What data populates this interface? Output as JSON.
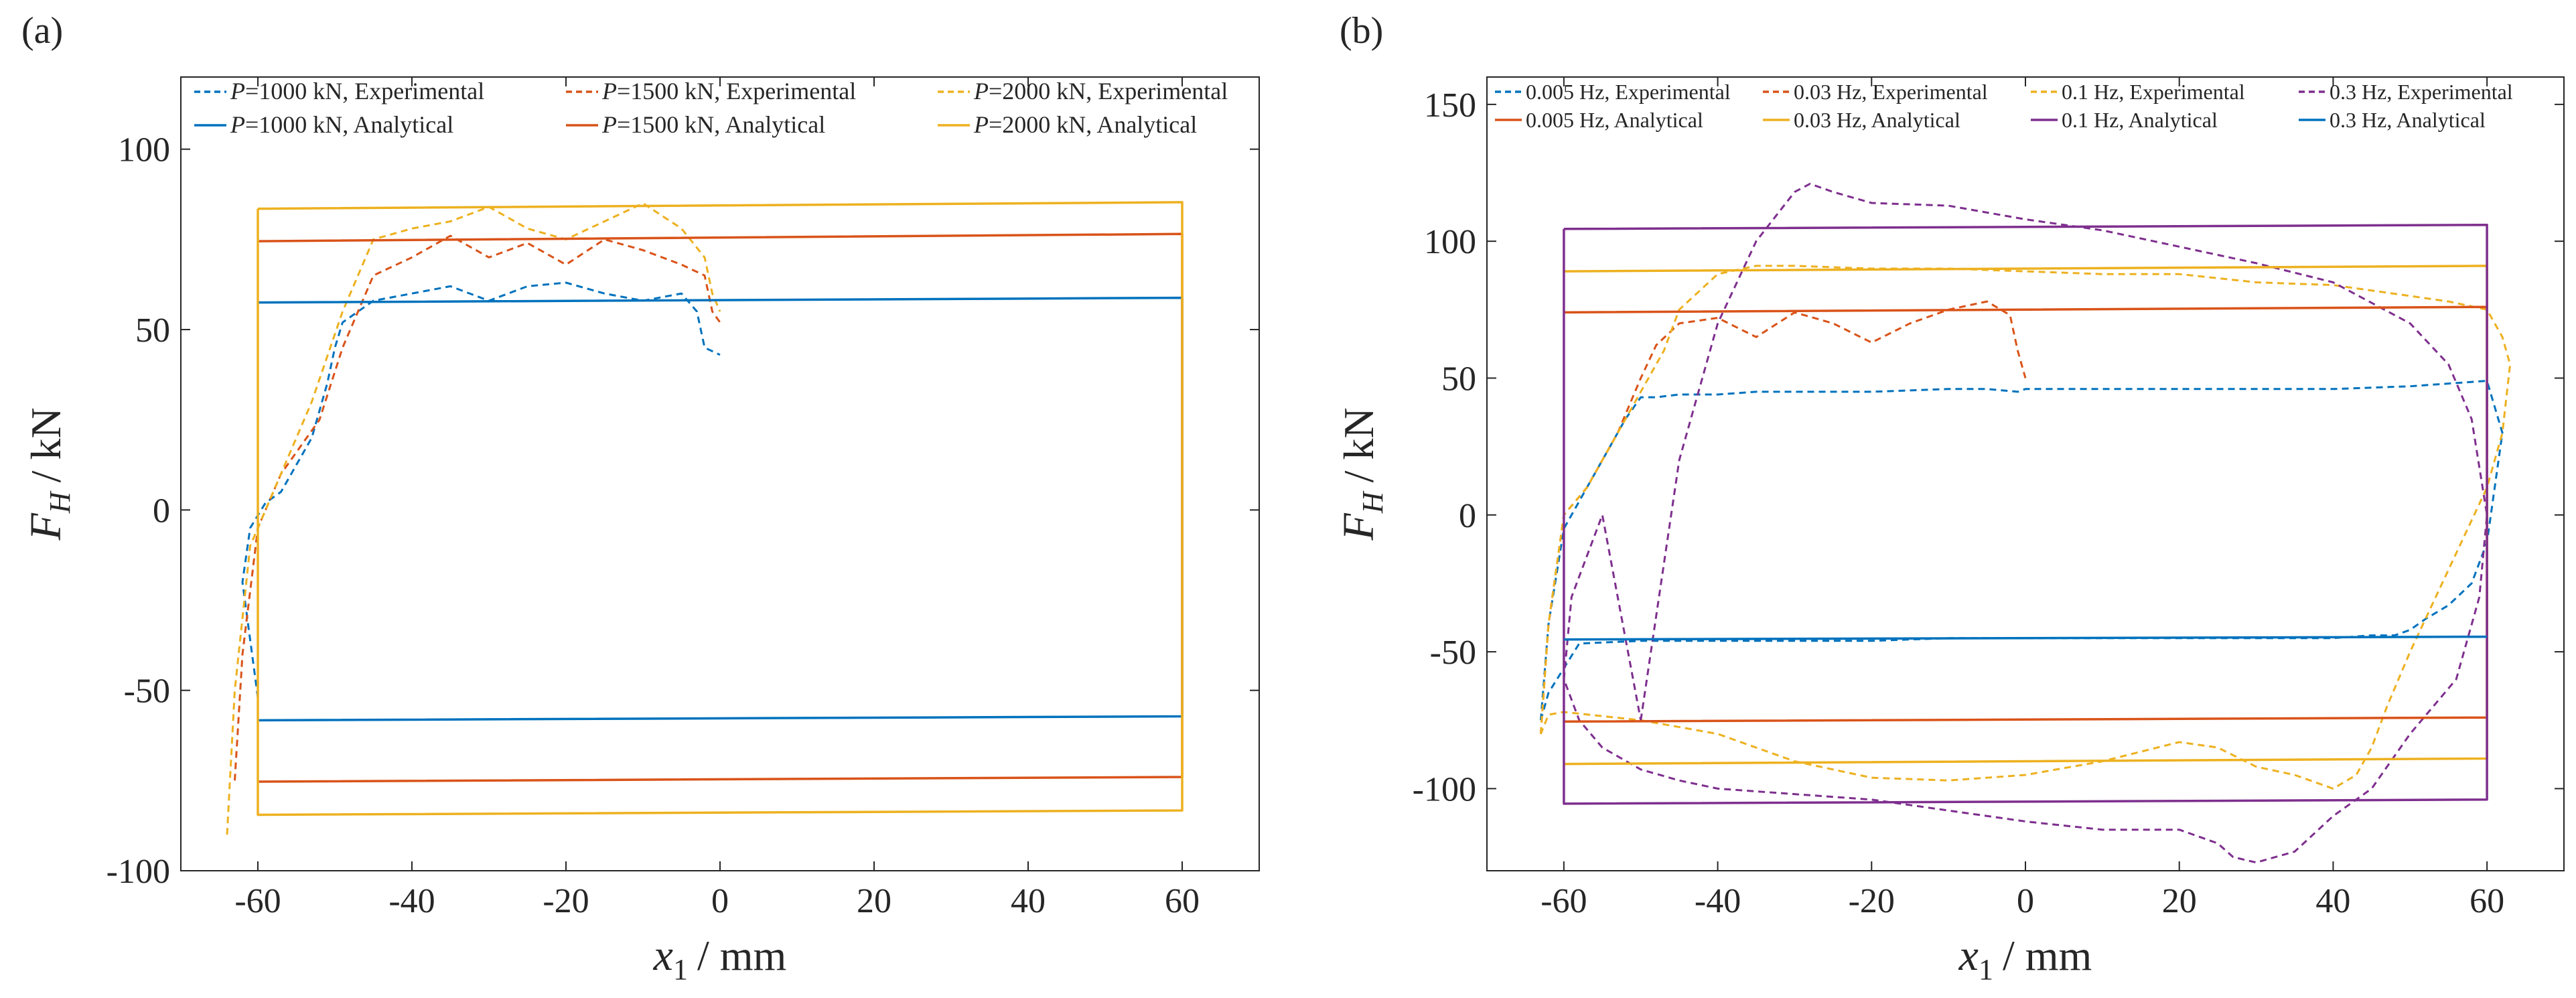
{
  "chart_data": [
    {
      "panel_label": "(a)",
      "type": "line",
      "xlabel_var": "x",
      "xlabel_sub": "1",
      "xlabel_unit": "/ mm",
      "ylabel_var": "F",
      "ylabel_sub": "H",
      "ylabel_unit": "/ kN",
      "xlim": [
        -70,
        70
      ],
      "ylim": [
        -100,
        120
      ],
      "xticks": [
        -60,
        -40,
        -20,
        0,
        20,
        40,
        60
      ],
      "yticks": [
        -100,
        -50,
        0,
        50,
        100
      ],
      "grid": false,
      "legend_position": "top",
      "legend_columns": 3,
      "series": [
        {
          "name": "P=1000 kN, Experimental",
          "label_var": "P",
          "label_rest": "=1000 kN, Experimental",
          "color": "#0072BD",
          "dash": "dashed",
          "x": [
            -60,
            -62,
            -61,
            -59,
            -57,
            -53,
            -51,
            -50,
            -49,
            -45,
            -40,
            -35,
            -30,
            -25,
            -20,
            -15,
            -10,
            -5,
            -3,
            -2,
            -1,
            0
          ],
          "y": [
            -52,
            -20,
            -5,
            2,
            5,
            20,
            35,
            45,
            52,
            58,
            60,
            62,
            58,
            62,
            63,
            60,
            58,
            60,
            55,
            45,
            44,
            43
          ]
        },
        {
          "name": "P=1500 kN, Experimental",
          "label_var": "P",
          "label_rest": "=1500 kN, Experimental",
          "color": "#D95319",
          "dash": "dashed",
          "x": [
            -63,
            -62,
            -60,
            -57,
            -52,
            -49,
            -45,
            -40,
            -35,
            -30,
            -25,
            -20,
            -15,
            -10,
            -5,
            -2,
            -1,
            0
          ],
          "y": [
            -75,
            -40,
            -5,
            10,
            25,
            45,
            65,
            70,
            76,
            70,
            74,
            68,
            75,
            72,
            68,
            65,
            55,
            52
          ]
        },
        {
          "name": "P=2000 kN, Experimental",
          "label_var": "P",
          "label_rest": "=2000 kN, Experimental",
          "color": "#EDB120",
          "dash": "dashed",
          "x": [
            -64,
            -63,
            -61,
            -57,
            -53,
            -49,
            -45,
            -40,
            -35,
            -30,
            -25,
            -20,
            -15,
            -10,
            -5,
            -2,
            -1,
            0
          ],
          "y": [
            -90,
            -50,
            -10,
            10,
            30,
            55,
            75,
            78,
            80,
            84,
            78,
            75,
            80,
            85,
            78,
            70,
            60,
            55
          ]
        },
        {
          "name": "P=1000 kN, Analytical",
          "label_var": "P",
          "label_rest": "=1000 kN, Analytical",
          "color": "#0072BD",
          "dash": "solid",
          "x": [
            -60,
            -60,
            60,
            60,
            60,
            -60
          ],
          "y": [
            57.5,
            57.5,
            58.8,
            58.8,
            -57.2,
            -58.3
          ]
        },
        {
          "name": "P=1500 kN, Analytical",
          "label_var": "P",
          "label_rest": "=1500 kN, Analytical",
          "color": "#D95319",
          "dash": "solid",
          "x": [
            -60,
            60,
            60,
            -60
          ],
          "y": [
            74.5,
            76.5,
            -74,
            -75.3
          ]
        },
        {
          "name": "P=2000 kN, Analytical",
          "label_var": "P",
          "label_rest": "=2000 kN, Analytical",
          "color": "#EDB120",
          "dash": "solid",
          "x": [
            -60,
            60,
            60,
            -60,
            -60
          ],
          "y": [
            83.5,
            85.3,
            -83.3,
            -84.5,
            83.5
          ]
        }
      ]
    },
    {
      "panel_label": "(b)",
      "type": "line",
      "xlabel_var": "x",
      "xlabel_sub": "1",
      "xlabel_unit": "/ mm",
      "ylabel_var": "F",
      "ylabel_sub": "H",
      "ylabel_unit": "/ kN",
      "xlim": [
        -70,
        70
      ],
      "ylim": [
        -130,
        160
      ],
      "xticks": [
        -60,
        -40,
        -20,
        0,
        20,
        40,
        60
      ],
      "yticks": [
        -100,
        -50,
        0,
        50,
        100,
        150
      ],
      "grid": false,
      "legend_position": "top",
      "legend_columns": 4,
      "series": [
        {
          "name": "0.005 Hz, Experimental",
          "color": "#0072BD",
          "dash": "dashed",
          "x": [
            -63,
            -62,
            -60,
            -57,
            -55,
            -52,
            -50,
            -48,
            -45,
            -40,
            -35,
            -30,
            -20,
            -10,
            -5,
            -1,
            0,
            10,
            20,
            30,
            40,
            50,
            60,
            62,
            61,
            60,
            58,
            55,
            52,
            50,
            48,
            45,
            40,
            30,
            20,
            10,
            0,
            -10,
            -20,
            -30,
            -40,
            -50,
            -58,
            -62,
            -63
          ],
          "y": [
            -75,
            -40,
            -5,
            10,
            20,
            35,
            43,
            43,
            44,
            44,
            45,
            45,
            45,
            46,
            46,
            45,
            46,
            46,
            46,
            46,
            46,
            47,
            49,
            30,
            10,
            -10,
            -25,
            -33,
            -38,
            -42,
            -44,
            -44,
            -45,
            -45,
            -45,
            -45,
            -45,
            -45,
            -46,
            -46,
            -46,
            -46,
            -47,
            -65,
            -75
          ]
        },
        {
          "name": "0.03 Hz, Experimental",
          "color": "#D95319",
          "dash": "dashed",
          "x": [
            -63,
            -62,
            -60,
            -57,
            -53,
            -50,
            -48,
            -45,
            -40,
            -35,
            -30,
            -25,
            -20,
            -15,
            -10,
            -5,
            -2,
            -1,
            0
          ],
          "y": [
            -80,
            -40,
            0,
            10,
            30,
            50,
            62,
            70,
            72,
            65,
            74,
            70,
            63,
            70,
            75,
            78,
            73,
            60,
            50
          ]
        },
        {
          "name": "0.1 Hz, Experimental",
          "color": "#EDB120",
          "dash": "dashed",
          "x": [
            -63,
            -62,
            -60,
            -57,
            -53,
            -50,
            -47,
            -45,
            -40,
            -35,
            -30,
            -20,
            -10,
            0,
            10,
            20,
            30,
            40,
            50,
            55,
            60,
            62,
            63,
            62,
            60,
            55,
            50,
            47,
            45,
            43,
            40,
            35,
            30,
            25,
            20,
            10,
            0,
            -10,
            -20,
            -30,
            -40,
            -50,
            -60,
            -62,
            -63
          ],
          "y": [
            -80,
            -40,
            0,
            10,
            30,
            45,
            60,
            75,
            88,
            91,
            91,
            90,
            90,
            89,
            88,
            88,
            85,
            84,
            80,
            78,
            75,
            65,
            55,
            30,
            10,
            -20,
            -50,
            -70,
            -85,
            -95,
            -100,
            -95,
            -92,
            -85,
            -83,
            -90,
            -95,
            -97,
            -96,
            -90,
            -80,
            -75,
            -72,
            -73,
            -80
          ]
        },
        {
          "name": "0.3 Hz, Experimental",
          "color": "#7E2F8E",
          "dash": "dashed",
          "x": [
            -50,
            -45,
            -40,
            -35,
            -30,
            -28,
            -25,
            -20,
            -10,
            0,
            10,
            20,
            30,
            40,
            50,
            55,
            58,
            60,
            59,
            56,
            50,
            45,
            40,
            35,
            30,
            27,
            25,
            20,
            10,
            0,
            -10,
            -20,
            -30,
            -40,
            -45,
            -50,
            -55,
            -58,
            -60,
            -59,
            -55,
            -50
          ],
          "y": [
            -75,
            20,
            70,
            100,
            118,
            121,
            118,
            114,
            113,
            108,
            104,
            98,
            92,
            85,
            70,
            55,
            35,
            0,
            -30,
            -60,
            -80,
            -100,
            -110,
            -123,
            -127,
            -125,
            -120,
            -115,
            -115,
            -112,
            -108,
            -104,
            -102,
            -100,
            -97,
            -93,
            -85,
            -75,
            -60,
            -30,
            0,
            -75
          ]
        },
        {
          "name": "0.005 Hz, Analytical",
          "color": "#D95319",
          "dash": "solid",
          "x": [
            -60,
            60,
            60,
            -60
          ],
          "y": [
            74,
            76,
            -74,
            -75.5
          ]
        },
        {
          "name": "0.03 Hz, Analytical",
          "color": "#EDB120",
          "dash": "solid",
          "x": [
            -60,
            60,
            60,
            -60
          ],
          "y": [
            89,
            91,
            -89,
            -91
          ]
        },
        {
          "name": "0.1 Hz, Analytical",
          "color": "#7E2F8E",
          "dash": "solid",
          "x": [
            -60,
            60,
            60,
            -60,
            -60
          ],
          "y": [
            104.5,
            106,
            -104,
            -105.5,
            104.5
          ]
        },
        {
          "name": "0.3 Hz, Analytical",
          "color": "#0072BD",
          "dash": "solid",
          "x": [
            -60,
            60
          ],
          "y": [
            -45.5,
            -44.5
          ]
        }
      ]
    }
  ]
}
